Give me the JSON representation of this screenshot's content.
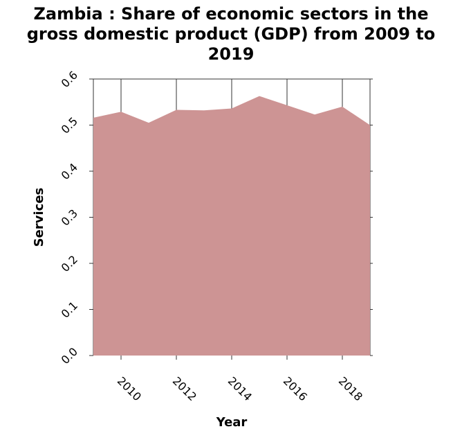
{
  "title_lines": [
    "Zambia : Share of economic sectors in the",
    "gross domestic product (GDP) from 2009 to",
    "2019"
  ],
  "chart_data": {
    "type": "area",
    "title": "Zambia : Share of economic sectors in the gross domestic product (GDP) from 2009 to 2019",
    "xlabel": "Year",
    "ylabel": "Services",
    "x": [
      2009,
      2010,
      2011,
      2012,
      2013,
      2014,
      2015,
      2016,
      2017,
      2018,
      2019
    ],
    "series": [
      {
        "values": [
          0.516,
          0.529,
          0.505,
          0.533,
          0.532,
          0.536,
          0.563,
          0.543,
          0.523,
          0.54,
          0.5
        ]
      }
    ],
    "xlim": [
      2009,
      2019
    ],
    "ylim": [
      0,
      0.6
    ],
    "xticks": [
      2010,
      2012,
      2014,
      2016,
      2018
    ],
    "xtick_labels": [
      "2010",
      "2012",
      "2014",
      "2016",
      "2018"
    ],
    "yticks": [
      0,
      0.1,
      0.2,
      0.3,
      0.4,
      0.5,
      0.6
    ],
    "ytick_labels": [
      "0.0",
      "0.1",
      "0.2",
      "0.3",
      "0.4",
      "0.5",
      "0.6"
    ],
    "grid": "vertical",
    "fill_color": "#cd9494",
    "grid_color": "#333333"
  }
}
